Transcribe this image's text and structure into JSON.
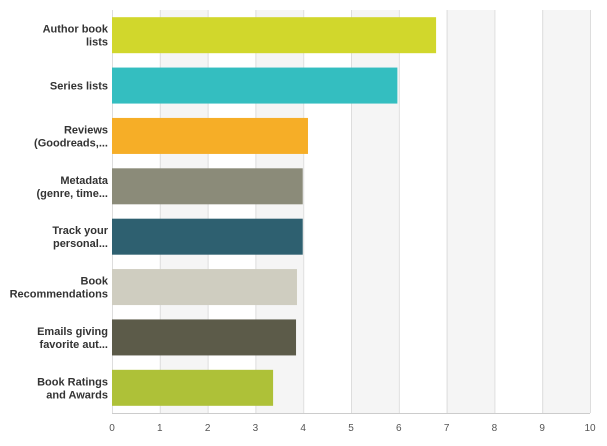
{
  "chart_data": {
    "type": "bar",
    "orientation": "horizontal",
    "categories": [
      [
        "Author book",
        "lists"
      ],
      [
        "Series lists"
      ],
      [
        "Reviews",
        "(Goodreads,..."
      ],
      [
        "Metadata",
        "(genre, time..."
      ],
      [
        "Track your",
        "personal..."
      ],
      [
        "Book",
        "Recommendations"
      ],
      [
        "Emails giving",
        "favorite aut..."
      ],
      [
        "Book Ratings",
        "and Awards"
      ]
    ],
    "values": [
      6.78,
      5.97,
      4.1,
      3.99,
      3.99,
      3.87,
      3.85,
      3.37
    ],
    "colors": [
      "#d1d72c",
      "#34bec0",
      "#f6ae27",
      "#8b8b79",
      "#2e6070",
      "#cfcdc0",
      "#5c5b49",
      "#aec138"
    ],
    "xlim": [
      0,
      10
    ],
    "xticks": [
      "0",
      "1",
      "2",
      "3",
      "4",
      "5",
      "6",
      "7",
      "8",
      "9",
      "10"
    ],
    "grid": true,
    "legend": "none",
    "title": "",
    "xlabel": "",
    "ylabel": ""
  }
}
